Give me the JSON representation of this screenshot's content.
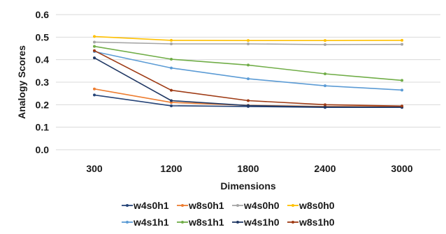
{
  "chart_data": {
    "type": "line",
    "title": "",
    "xlabel": "Dimensions",
    "ylabel": "Analogy Scores",
    "categories": [
      "300",
      "1200",
      "1800",
      "2400",
      "3000"
    ],
    "ylim": [
      0,
      0.6
    ],
    "yticks": [
      "0.0",
      "0.1",
      "0.2",
      "0.3",
      "0.4",
      "0.5",
      "0.6"
    ],
    "grid": true,
    "legend_position": "bottom",
    "series": [
      {
        "name": "w4s0h1",
        "color": "#264478",
        "values": [
          0.243,
          0.195,
          0.192,
          0.188,
          0.188
        ]
      },
      {
        "name": "w8s0h1",
        "color": "#ed7d31",
        "values": [
          0.27,
          0.21,
          0.197,
          0.192,
          0.191
        ]
      },
      {
        "name": "w4s0h0",
        "color": "#a5a5a5",
        "values": [
          0.478,
          0.47,
          0.47,
          0.467,
          0.468
        ]
      },
      {
        "name": "w8s0h0",
        "color": "#ffc000",
        "values": [
          0.503,
          0.486,
          0.485,
          0.485,
          0.486
        ]
      },
      {
        "name": "w4s1h1",
        "color": "#5b9bd5",
        "values": [
          0.436,
          0.363,
          0.315,
          0.284,
          0.265
        ]
      },
      {
        "name": "w8s1h1",
        "color": "#70ad47",
        "values": [
          0.459,
          0.402,
          0.376,
          0.337,
          0.308
        ]
      },
      {
        "name": "w4s1h0",
        "color": "#203864",
        "values": [
          0.408,
          0.218,
          0.196,
          0.19,
          0.189
        ]
      },
      {
        "name": "w8s1h0",
        "color": "#9e3a14",
        "values": [
          0.44,
          0.264,
          0.218,
          0.2,
          0.194
        ]
      }
    ]
  }
}
